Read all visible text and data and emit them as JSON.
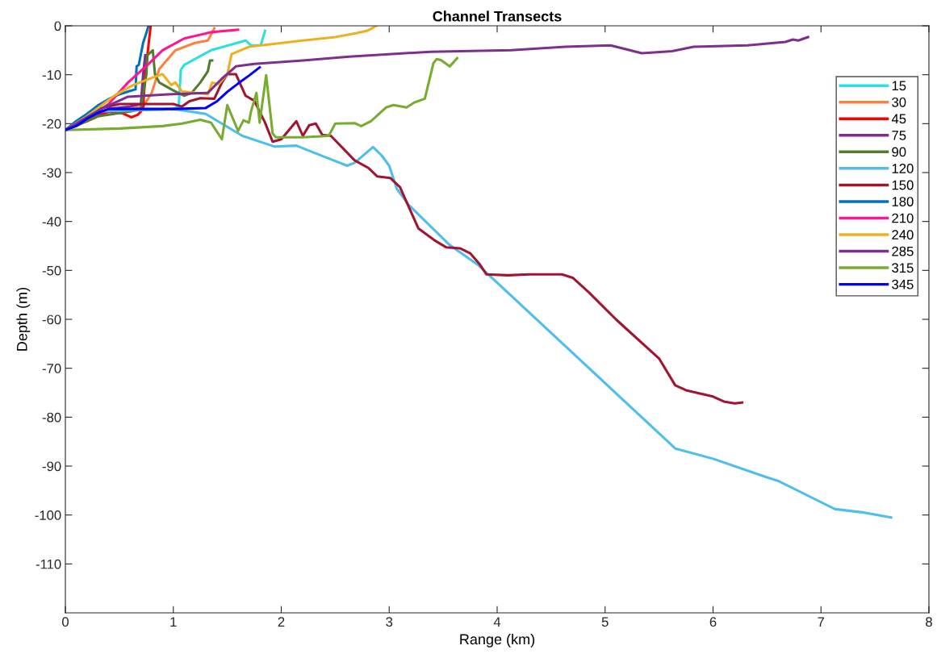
{
  "chart_data": {
    "type": "line",
    "title": "Channel Transects",
    "xlabel": "Range (km)",
    "ylabel": "Depth (m)",
    "xlim": [
      0,
      8
    ],
    "xticks": [
      0,
      1,
      2,
      3,
      4,
      5,
      6,
      7,
      8
    ],
    "ylim": [
      -120,
      0
    ],
    "yticks": [
      0,
      -10,
      -20,
      -30,
      -40,
      -50,
      -60,
      -70,
      -80,
      -90,
      -100,
      -110
    ],
    "grid": false,
    "legend": "top right",
    "marker": "none",
    "line_style": "solid",
    "series": [
      {
        "name": "15",
        "color": "#2ce0e0",
        "x": [
          0,
          0.3,
          1.0,
          1.05,
          1.07,
          1.1,
          1.35,
          1.67,
          1.72,
          1.81,
          1.85
        ],
        "values": [
          -21.3,
          -17.5,
          -17,
          -16.5,
          -9,
          -8,
          -5,
          -3,
          -4,
          -4,
          -1
        ]
      },
      {
        "name": "30",
        "color": "#ff7f3f",
        "x": [
          0,
          0.3,
          0.6,
          0.72,
          0.8,
          0.87,
          1.02,
          1.2,
          1.32,
          1.38
        ],
        "values": [
          -21.3,
          -18,
          -17,
          -16.5,
          -13.7,
          -8.8,
          -5,
          -3.5,
          -3,
          -0.5
        ]
      },
      {
        "name": "45",
        "color": "#ff0000",
        "x": [
          0,
          0.2,
          0.4,
          0.53,
          0.61,
          0.67,
          0.72,
          0.74,
          0.77,
          0.79
        ],
        "values": [
          -21.3,
          -19.5,
          -17.5,
          -17.9,
          -18.7,
          -18.2,
          -17,
          -10,
          -4,
          0
        ]
      },
      {
        "name": "75",
        "color": "#7e2f8e",
        "x": [
          0,
          0.2,
          0.4,
          0.6,
          0.7,
          0.72,
          0.74
        ],
        "values": [
          -21.3,
          -19,
          -17,
          -16.5,
          -16,
          -10,
          -6
        ]
      },
      {
        "name": "90",
        "color": "#507d2a",
        "x": [
          0,
          0.3,
          0.6,
          0.7,
          0.75,
          0.76,
          0.81,
          0.83,
          0.87,
          1.0,
          1.1,
          1.17,
          1.25,
          1.32,
          1.34,
          1.36
        ],
        "values": [
          -21.3,
          -18.5,
          -17.5,
          -17,
          -10,
          -6,
          -5,
          -9.9,
          -11.6,
          -13.2,
          -14.3,
          -13.7,
          -11.6,
          -9.3,
          -7.1,
          -7.1
        ]
      },
      {
        "name": "120",
        "color": "#4dbeee",
        "x": [
          0,
          0.3,
          1.0,
          1.3,
          1.64,
          1.94,
          2.14,
          2.38,
          2.61,
          2.68,
          2.85,
          2.93,
          3.0,
          3.07,
          3.18,
          3.56,
          3.83,
          5.65,
          6.0,
          6.5,
          6.6,
          7.13,
          7.4,
          7.65
        ],
        "values": [
          -21.3,
          -17.5,
          -17,
          -18,
          -22.5,
          -24.7,
          -24.5,
          -26.6,
          -28.6,
          -28,
          -24.8,
          -26.5,
          -28.6,
          -33.3,
          -36.6,
          -44.8,
          -49,
          -86.4,
          -88.5,
          -92.3,
          -93,
          -98.8,
          -99.5,
          -100.5
        ]
      },
      {
        "name": "150",
        "color": "#a2142f",
        "x": [
          0,
          0.3,
          0.5,
          1.0,
          1.08,
          1.15,
          1.25,
          1.38,
          1.45,
          1.5,
          1.58,
          1.67,
          1.75,
          1.85,
          1.92,
          2.0,
          2.14,
          2.2,
          2.26,
          2.32,
          2.38,
          2.46,
          2.68,
          2.81,
          2.89,
          3.01,
          3.1,
          3.27,
          3.43,
          3.53,
          3.66,
          3.75,
          3.84,
          3.9,
          4.1,
          4.3,
          4.6,
          4.7,
          4.85,
          5.1,
          5.5,
          5.65,
          5.75,
          6.0,
          6.1,
          6.2,
          6.27
        ],
        "values": [
          -21.3,
          -17,
          -16,
          -16,
          -16.5,
          -15.4,
          -14.8,
          -14.9,
          -11.6,
          -9.9,
          -9.9,
          -14.3,
          -15.3,
          -19.8,
          -23.7,
          -23.2,
          -19.5,
          -22.5,
          -20.3,
          -20,
          -22.3,
          -22.5,
          -27.5,
          -29.1,
          -30.8,
          -31.1,
          -33,
          -41.4,
          -44,
          -45.3,
          -45.5,
          -46.5,
          -48.8,
          -50.8,
          -51,
          -50.8,
          -50.8,
          -51.5,
          -54.5,
          -60,
          -68,
          -73.5,
          -74.5,
          -75.8,
          -76.8,
          -77.2,
          -77
        ]
      },
      {
        "name": "180",
        "color": "#0072bd",
        "x": [
          0,
          0.1,
          0.2,
          0.3,
          0.4,
          0.5,
          0.6,
          0.65,
          0.66,
          0.68,
          0.72,
          0.75,
          0.77
        ],
        "values": [
          -21.3,
          -19.5,
          -18,
          -16.3,
          -15,
          -14,
          -13.3,
          -13,
          -8.3,
          -8,
          -3.5,
          -1.5,
          0
        ]
      },
      {
        "name": "210",
        "color": "#ff1493",
        "x": [
          0,
          0.2,
          0.4,
          0.58,
          0.78,
          0.9,
          1.1,
          1.35,
          1.6
        ],
        "values": [
          -21.3,
          -19,
          -16,
          -11.6,
          -7.6,
          -5,
          -2.6,
          -1.3,
          -0.8
        ]
      },
      {
        "name": "240",
        "color": "#edb120",
        "x": [
          0,
          0.2,
          0.46,
          0.63,
          0.83,
          0.9,
          0.98,
          1.02,
          1.08,
          1.32,
          1.36,
          1.42,
          1.5,
          1.54,
          1.7,
          2.2,
          2.5,
          2.7,
          2.8,
          2.88
        ],
        "values": [
          -21.3,
          -18.5,
          -14.2,
          -12.1,
          -10.4,
          -9.9,
          -12.1,
          -11.6,
          -13.4,
          -14,
          -11.6,
          -11.9,
          -9.9,
          -5.8,
          -4.3,
          -3,
          -2.3,
          -1.5,
          -1,
          0
        ]
      },
      {
        "name": "285",
        "color": "#7e2f8e",
        "x": [
          0,
          0.33,
          0.58,
          0.95,
          1.32,
          1.45,
          1.58,
          1.75,
          2.2,
          2.63,
          3.38,
          4.13,
          4.63,
          5.05,
          5.34,
          5.62,
          5.82,
          6.32,
          6.67,
          6.74,
          6.79,
          6.88
        ],
        "values": [
          -21.3,
          -17,
          -14.5,
          -14,
          -13.7,
          -10.8,
          -8.3,
          -7.8,
          -7.1,
          -6.3,
          -5.3,
          -5,
          -4.3,
          -4,
          -5.6,
          -5.2,
          -4.3,
          -4,
          -3.3,
          -2.8,
          -3,
          -2.3
        ]
      },
      {
        "name": "315",
        "color": "#77ac30",
        "x": [
          0,
          0.5,
          0.9,
          1.08,
          1.25,
          1.35,
          1.45,
          1.5,
          1.6,
          1.65,
          1.7,
          1.72,
          1.77,
          1.8,
          1.86,
          1.92,
          1.95,
          2.2,
          2.44,
          2.5,
          2.68,
          2.74,
          2.83,
          2.97,
          3.04,
          3.16,
          3.23,
          3.33,
          3.41,
          3.44,
          3.48,
          3.56,
          3.63
        ],
        "values": [
          -21.3,
          -21,
          -20.5,
          -20,
          -19.2,
          -19.8,
          -23.2,
          -16.2,
          -21.5,
          -19.3,
          -19.8,
          -17.5,
          -13.7,
          -19.8,
          -10.1,
          -22,
          -22.8,
          -22.8,
          -22.5,
          -20,
          -19.9,
          -20.5,
          -19.5,
          -16.7,
          -16.2,
          -16.7,
          -15.7,
          -14.9,
          -7.6,
          -6.8,
          -7,
          -8.3,
          -6.6
        ]
      },
      {
        "name": "345",
        "color": "#0000ff",
        "x": [
          0,
          0.1,
          0.2,
          0.3,
          0.4,
          0.7,
          1.0,
          1.3,
          1.4,
          1.5,
          1.6,
          1.7,
          1.8
        ],
        "values": [
          -21.3,
          -20.5,
          -19,
          -17.8,
          -17,
          -17,
          -17,
          -16.8,
          -15.5,
          -13.5,
          -11.8,
          -10.2,
          -8.5
        ]
      }
    ]
  }
}
